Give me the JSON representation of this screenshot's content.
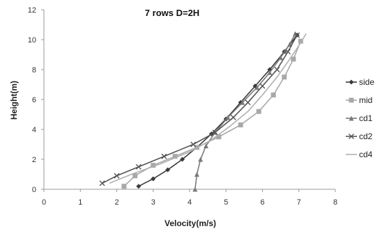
{
  "chart_data": {
    "type": "line",
    "title": "7 rows D=2H",
    "xlabel": "Velocity(m/s)",
    "ylabel": "Height(m)",
    "xlim": [
      0,
      8
    ],
    "ylim": [
      0,
      12
    ],
    "xticks": [
      "0",
      "1",
      "2",
      "3",
      "4",
      "5",
      "6",
      "7",
      "8"
    ],
    "yticks": [
      "0",
      "2",
      "4",
      "6",
      "8",
      "10",
      "12"
    ],
    "grid": false,
    "legend_position": "right",
    "series": [
      {
        "name": "side",
        "color": "#3a3a3a",
        "marker": "diamond",
        "points": [
          [
            2.6,
            0.2
          ],
          [
            3.0,
            0.7
          ],
          [
            3.4,
            1.3
          ],
          [
            3.8,
            2.0
          ],
          [
            4.2,
            2.8
          ],
          [
            4.6,
            3.7
          ],
          [
            5.0,
            4.7
          ],
          [
            5.4,
            5.8
          ],
          [
            5.8,
            6.9
          ],
          [
            6.2,
            8.0
          ],
          [
            6.6,
            9.2
          ],
          [
            6.95,
            10.3
          ]
        ]
      },
      {
        "name": "mid",
        "color": "#a8a8a8",
        "marker": "square",
        "points": [
          [
            2.2,
            0.2
          ],
          [
            2.5,
            0.9
          ],
          [
            3.0,
            1.6
          ],
          [
            3.6,
            2.2
          ],
          [
            4.2,
            2.8
          ],
          [
            4.8,
            3.5
          ],
          [
            5.4,
            4.3
          ],
          [
            5.9,
            5.2
          ],
          [
            6.3,
            6.3
          ],
          [
            6.6,
            7.5
          ],
          [
            6.85,
            8.7
          ],
          [
            7.05,
            9.9
          ]
        ]
      },
      {
        "name": "cd1",
        "color": "#7a7a7a",
        "marker": "triangle",
        "points": [
          [
            4.15,
            0.0
          ],
          [
            4.2,
            1.0
          ],
          [
            4.3,
            2.0
          ],
          [
            4.45,
            2.9
          ],
          [
            4.7,
            3.8
          ],
          [
            5.05,
            4.8
          ],
          [
            5.45,
            5.8
          ],
          [
            5.85,
            6.8
          ],
          [
            6.2,
            7.8
          ],
          [
            6.5,
            8.8
          ],
          [
            6.75,
            9.7
          ],
          [
            6.9,
            10.4
          ]
        ]
      },
      {
        "name": "cd2",
        "color": "#555555",
        "marker": "x",
        "points": [
          [
            1.6,
            0.4
          ],
          [
            2.0,
            0.9
          ],
          [
            2.6,
            1.5
          ],
          [
            3.3,
            2.2
          ],
          [
            4.1,
            3.0
          ],
          [
            4.7,
            3.8
          ],
          [
            5.2,
            4.8
          ],
          [
            5.6,
            5.8
          ],
          [
            6.0,
            6.9
          ],
          [
            6.4,
            8.0
          ],
          [
            6.7,
            9.2
          ],
          [
            6.95,
            10.3
          ]
        ]
      },
      {
        "name": "cd4",
        "color": "#b0b0b0",
        "marker": "none",
        "points": [
          [
            1.8,
            0.4
          ],
          [
            2.4,
            1.0
          ],
          [
            3.2,
            1.7
          ],
          [
            4.0,
            2.5
          ],
          [
            4.6,
            3.3
          ],
          [
            5.1,
            4.2
          ],
          [
            5.6,
            5.2
          ],
          [
            6.0,
            6.3
          ],
          [
            6.4,
            7.5
          ],
          [
            6.75,
            8.7
          ],
          [
            7.0,
            9.6
          ],
          [
            7.2,
            10.4
          ]
        ]
      }
    ]
  }
}
